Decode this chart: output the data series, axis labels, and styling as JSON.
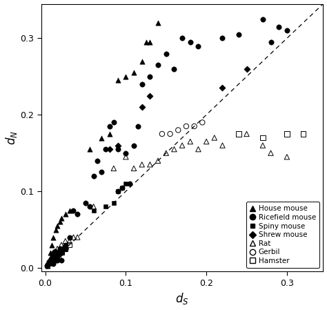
{
  "title": "",
  "xlabel": "$d_S$",
  "ylabel": "$d_N$",
  "xlim": [
    -0.005,
    0.345
  ],
  "ylim": [
    -0.005,
    0.345
  ],
  "xticks": [
    0.0,
    0.1,
    0.2,
    0.3
  ],
  "yticks": [
    0.0,
    0.1,
    0.2,
    0.3
  ],
  "house_mouse": {
    "label": "House mouse",
    "marker": "^",
    "filled": true,
    "size": 28,
    "x": [
      0.003,
      0.006,
      0.008,
      0.01,
      0.013,
      0.015,
      0.018,
      0.02,
      0.025,
      0.03,
      0.055,
      0.07,
      0.08,
      0.09,
      0.1,
      0.11,
      0.12,
      0.125,
      0.13,
      0.14
    ],
    "y": [
      0.003,
      0.02,
      0.03,
      0.04,
      0.05,
      0.055,
      0.06,
      0.065,
      0.07,
      0.075,
      0.155,
      0.17,
      0.175,
      0.245,
      0.25,
      0.255,
      0.27,
      0.295,
      0.295,
      0.32
    ]
  },
  "ricefield_mouse": {
    "label": "Ricefield mouse",
    "marker": "o",
    "filled": true,
    "size": 28,
    "x": [
      0.002,
      0.004,
      0.005,
      0.006,
      0.007,
      0.008,
      0.009,
      0.01,
      0.011,
      0.012,
      0.013,
      0.014,
      0.015,
      0.016,
      0.018,
      0.02,
      0.022,
      0.025,
      0.03,
      0.035,
      0.04,
      0.05,
      0.055,
      0.06,
      0.065,
      0.07,
      0.075,
      0.08,
      0.085,
      0.09,
      0.09,
      0.095,
      0.1,
      0.105,
      0.11,
      0.115,
      0.12,
      0.13,
      0.14,
      0.15,
      0.16,
      0.17,
      0.18,
      0.19,
      0.22,
      0.24,
      0.27,
      0.28,
      0.29,
      0.3
    ],
    "y": [
      0.003,
      0.005,
      0.008,
      0.01,
      0.012,
      0.01,
      0.015,
      0.005,
      0.02,
      0.022,
      0.01,
      0.015,
      0.01,
      0.02,
      0.025,
      0.01,
      0.025,
      0.03,
      0.04,
      0.075,
      0.07,
      0.085,
      0.08,
      0.12,
      0.14,
      0.125,
      0.155,
      0.185,
      0.19,
      0.1,
      0.155,
      0.105,
      0.15,
      0.11,
      0.16,
      0.185,
      0.24,
      0.25,
      0.265,
      0.28,
      0.26,
      0.3,
      0.295,
      0.29,
      0.3,
      0.305,
      0.325,
      0.295,
      0.315,
      0.31
    ]
  },
  "spiny_mouse": {
    "label": "Spiny mouse",
    "marker": "s",
    "filled": true,
    "size": 14,
    "x": [
      0.005,
      0.008,
      0.01,
      0.012,
      0.015,
      0.02,
      0.025,
      0.06,
      0.075,
      0.085,
      0.09,
      0.095,
      0.1
    ],
    "y": [
      0.005,
      0.008,
      0.01,
      0.012,
      0.015,
      0.02,
      0.025,
      0.075,
      0.08,
      0.085,
      0.1,
      0.105,
      0.11
    ]
  },
  "shrew_mouse": {
    "label": "Shrew mouse",
    "marker": "D",
    "filled": true,
    "size": 22,
    "x": [
      0.015,
      0.02,
      0.025,
      0.08,
      0.09,
      0.12,
      0.13,
      0.22,
      0.25
    ],
    "y": [
      0.015,
      0.02,
      0.025,
      0.155,
      0.16,
      0.21,
      0.225,
      0.235,
      0.26
    ]
  },
  "rat": {
    "label": "Rat",
    "marker": "^",
    "filled": false,
    "size": 28,
    "x": [
      0.01,
      0.015,
      0.02,
      0.025,
      0.03,
      0.035,
      0.04,
      0.06,
      0.085,
      0.1,
      0.11,
      0.12,
      0.13,
      0.14,
      0.15,
      0.16,
      0.17,
      0.18,
      0.19,
      0.2,
      0.21,
      0.22,
      0.25,
      0.27,
      0.28,
      0.3
    ],
    "y": [
      0.02,
      0.025,
      0.03,
      0.035,
      0.035,
      0.04,
      0.04,
      0.08,
      0.13,
      0.145,
      0.13,
      0.135,
      0.135,
      0.14,
      0.15,
      0.155,
      0.16,
      0.165,
      0.155,
      0.165,
      0.17,
      0.16,
      0.175,
      0.16,
      0.15,
      0.145
    ]
  },
  "gerbil": {
    "label": "Gerbil",
    "marker": "o",
    "filled": false,
    "size": 28,
    "x": [
      0.003,
      0.006,
      0.01,
      0.013,
      0.016,
      0.02,
      0.025,
      0.145,
      0.155,
      0.165,
      0.175,
      0.185,
      0.195
    ],
    "y": [
      0.003,
      0.006,
      0.01,
      0.013,
      0.016,
      0.02,
      0.025,
      0.175,
      0.175,
      0.18,
      0.185,
      0.185,
      0.19
    ]
  },
  "hamster": {
    "label": "Hamster",
    "marker": "s",
    "filled": false,
    "size": 28,
    "x": [
      0.008,
      0.012,
      0.016,
      0.02,
      0.025,
      0.03,
      0.24,
      0.27,
      0.3,
      0.32
    ],
    "y": [
      0.008,
      0.012,
      0.016,
      0.02,
      0.025,
      0.03,
      0.175,
      0.17,
      0.175,
      0.175
    ]
  },
  "legend_fontsize": 7.5,
  "axis_fontsize": 12,
  "tick_fontsize": 9
}
